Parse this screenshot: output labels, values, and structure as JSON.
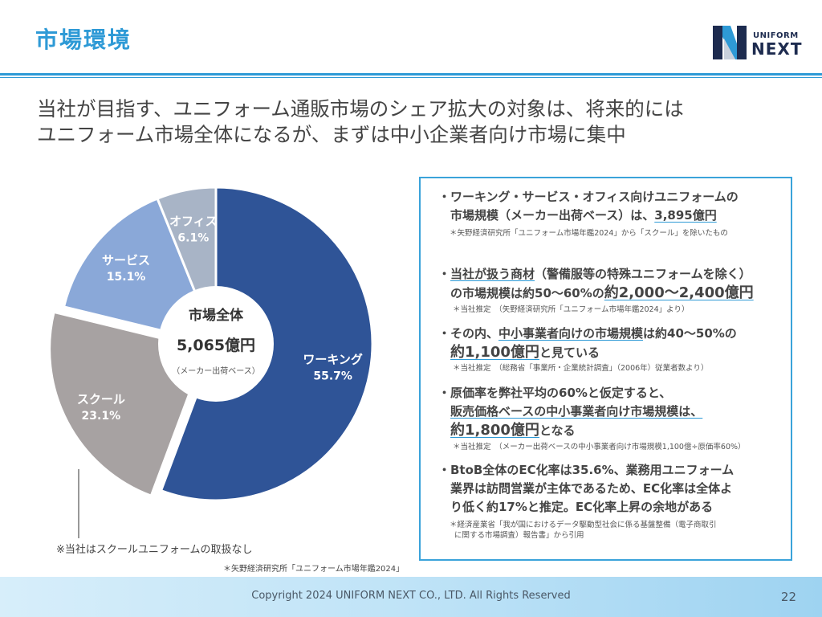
{
  "header": {
    "title": "市場環境",
    "logo_small": "UNIFORM",
    "logo_big": "NEXT"
  },
  "headline": {
    "line1": "当社が目指す、ユニフォーム通販市場のシェア拡大の対象は、将来的には",
    "line2": "ユニフォーム市場全体になるが、まずは中小企業者向け市場に集中"
  },
  "chart_data": {
    "type": "pie",
    "title": "",
    "center_label": "市場全体",
    "center_value": "5,065億円",
    "center_sub": "（メーカー出荷ベース）",
    "slices": [
      {
        "name": "ワーキング",
        "value": 55.7,
        "label": "55.7%",
        "color": "#2f5497"
      },
      {
        "name": "スクール",
        "value": 23.1,
        "label": "23.1%",
        "color": "#a7a2a2",
        "exploded": true
      },
      {
        "name": "サービス",
        "value": 15.1,
        "label": "15.1%",
        "color": "#8aa8d8"
      },
      {
        "name": "オフィス",
        "value": 6.1,
        "label": "6.1%",
        "color": "#a8b4c6"
      }
    ]
  },
  "chart_notes": {
    "school_note": "※当社はスクールユニフォームの取扱なし",
    "source": "＊矢野経済研究所「ユニフォーム市場年鑑2024」"
  },
  "bullets": {
    "b1_l1": "・ワーキング・サービス・オフィス向けユニフォームの",
    "b1_l2a": "市場規模（メーカー出荷ベース）は、",
    "b1_l2b": "3,895億円",
    "b1_note": "＊矢野経済研究所「ユニフォーム市場年鑑2024」から「スクール」を除いたもの",
    "b2_l1a": "・",
    "b2_l1b": "当社が扱う商材",
    "b2_l1c": "（警備服等の特殊ユニフォームを除く）",
    "b2_l2a": "の市場規模は約50～60%の",
    "b2_l2b": "約2,000～2,400億円",
    "b2_note": "＊当社推定　（矢野経済研究所「ユニフォーム市場年鑑2024」より）",
    "b3_l1a": "・その内、",
    "b3_l1b": "中小事業者向けの市場規模",
    "b3_l1c": "は約40～50%の",
    "b3_l2a": "約1,100億円",
    "b3_l2b": "と見ている",
    "b3_note": "＊当社推定　（総務省「事業所・企業統計調査」（2006年）従業者数より）",
    "b4_l1": "・原価率を弊社平均の60%と仮定すると、",
    "b4_l2": "販売価格ベースの中小事業者向け市場規模は、",
    "b4_l3a": "約1,800億円",
    "b4_l3b": "となる",
    "b4_note": "＊当社推定　（メーカー出荷ベースの中小事業者向け市場規模1,100億÷原価率60%）",
    "b5_l1": "・BtoB全体のEC化率は35.6%、業務用ユニフォーム",
    "b5_l2": "業界は訪問営業が主体であるため、EC化率は全体よ",
    "b5_l3": "り低く約17%と推定。EC化率上昇の余地がある",
    "b5_note1": "＊経済産業省「我が国におけるデータ駆動型社会に係る基盤整備（電子商取引",
    "b5_note2": "に関する市場調査）報告書」から引用"
  },
  "footer": {
    "copyright": "Copyright 2024 UNIFORM NEXT CO., LTD. All Rights Reserved",
    "page_number": "22"
  }
}
